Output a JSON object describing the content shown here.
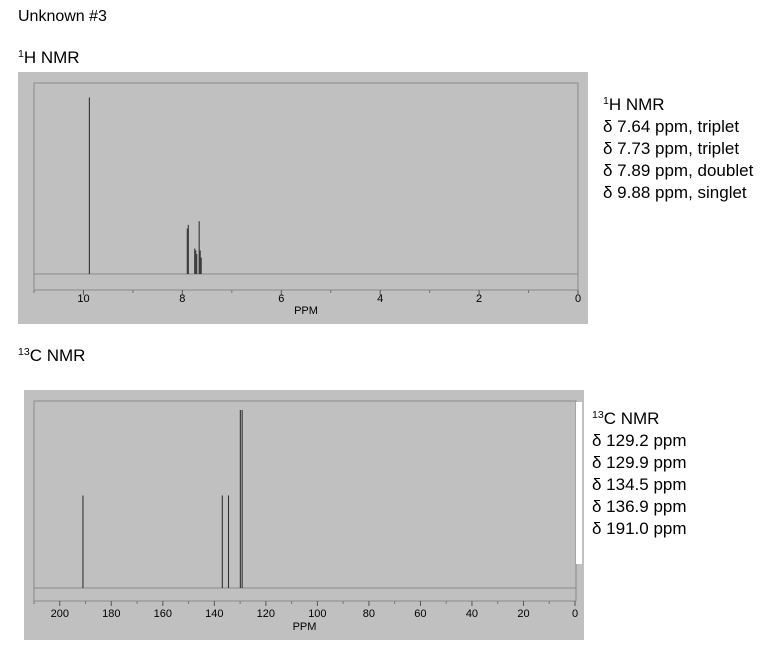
{
  "title": "Unknown #3",
  "chart_data": [
    {
      "type": "line",
      "title": "1H NMR",
      "title_sup": "1",
      "title_main": "H NMR",
      "xlabel": "PPM",
      "ylabel": "",
      "xlim": [
        11,
        0
      ],
      "ylim": [
        0,
        1
      ],
      "x_ticks": [
        "10",
        "8",
        "6",
        "4",
        "2",
        "0"
      ],
      "x_tick_values": [
        10,
        8,
        6,
        4,
        2,
        0
      ],
      "grid": false,
      "legend": "none",
      "peaks": [
        {
          "ppm": 9.88,
          "height": 0.97
        },
        {
          "ppm": 7.9,
          "height": 0.25
        },
        {
          "ppm": 7.88,
          "height": 0.27
        },
        {
          "ppm": 7.75,
          "height": 0.14
        },
        {
          "ppm": 7.73,
          "height": 0.13
        },
        {
          "ppm": 7.71,
          "height": 0.11
        },
        {
          "ppm": 7.66,
          "height": 0.29
        },
        {
          "ppm": 7.64,
          "height": 0.13
        },
        {
          "ppm": 7.62,
          "height": 0.09
        }
      ],
      "peak_list": [
        "δ 7.64 ppm, triplet",
        "δ 7.73 ppm, triplet",
        "δ 7.89 ppm, doublet",
        "δ 9.88 ppm, singlet"
      ]
    },
    {
      "type": "line",
      "title": "13C NMR",
      "title_sup": "13",
      "title_main": "C NMR",
      "xlabel": "PPM",
      "ylabel": "",
      "xlim": [
        210,
        0
      ],
      "ylim": [
        0,
        1
      ],
      "x_ticks": [
        "200",
        "180",
        "160",
        "140",
        "120",
        "100",
        "80",
        "60",
        "40",
        "20",
        "0"
      ],
      "x_tick_values": [
        200,
        180,
        160,
        140,
        120,
        100,
        80,
        60,
        40,
        20,
        0
      ],
      "grid": false,
      "legend": "none",
      "peaks": [
        {
          "ppm": 191.0,
          "height": 0.52
        },
        {
          "ppm": 136.9,
          "height": 0.52
        },
        {
          "ppm": 134.5,
          "height": 0.52
        },
        {
          "ppm": 129.9,
          "height": 1.0
        },
        {
          "ppm": 129.2,
          "height": 1.0
        }
      ],
      "peak_list": [
        "δ 129.2 ppm",
        "δ 129.9 ppm",
        "δ 134.5 ppm",
        "δ 136.9 ppm",
        "δ 191.0 ppm"
      ]
    }
  ],
  "colors": {
    "panel": "#c0c0c0",
    "frame": "#8a8a8a",
    "peak": "#333333"
  }
}
